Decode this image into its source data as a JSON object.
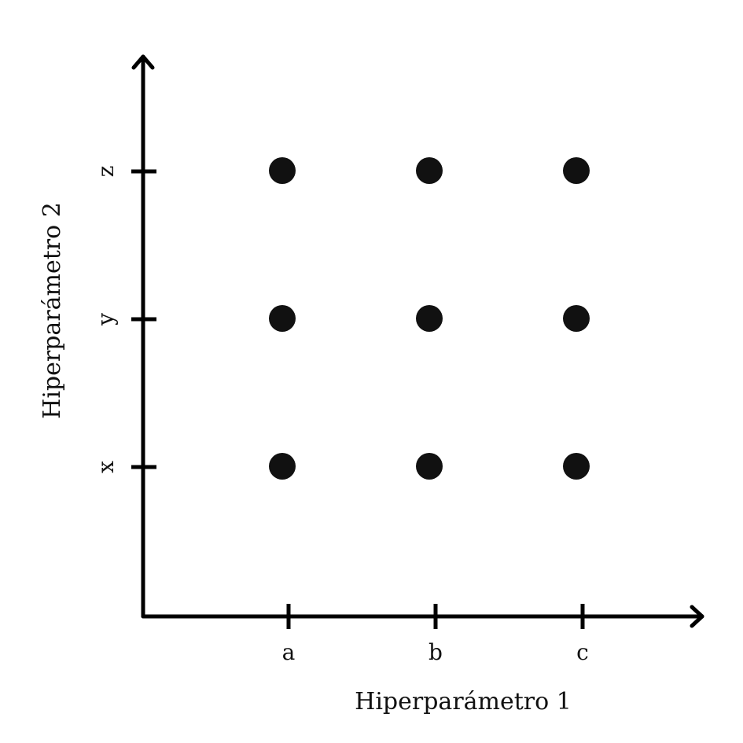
{
  "chart_data": {
    "type": "scatter",
    "xlabel": "Hiperparámetro 1",
    "ylabel": "Hiperparámetro 2",
    "x_categories": [
      "a",
      "b",
      "c"
    ],
    "y_categories": [
      "x",
      "y",
      "z"
    ],
    "points": [
      {
        "x": "a",
        "y": "x"
      },
      {
        "x": "b",
        "y": "x"
      },
      {
        "x": "c",
        "y": "x"
      },
      {
        "x": "a",
        "y": "y"
      },
      {
        "x": "b",
        "y": "y"
      },
      {
        "x": "c",
        "y": "y"
      },
      {
        "x": "a",
        "y": "z"
      },
      {
        "x": "b",
        "y": "z"
      },
      {
        "x": "c",
        "y": "z"
      }
    ],
    "grid": false,
    "colors": {
      "axis": "#000000",
      "point": "#111111"
    }
  }
}
